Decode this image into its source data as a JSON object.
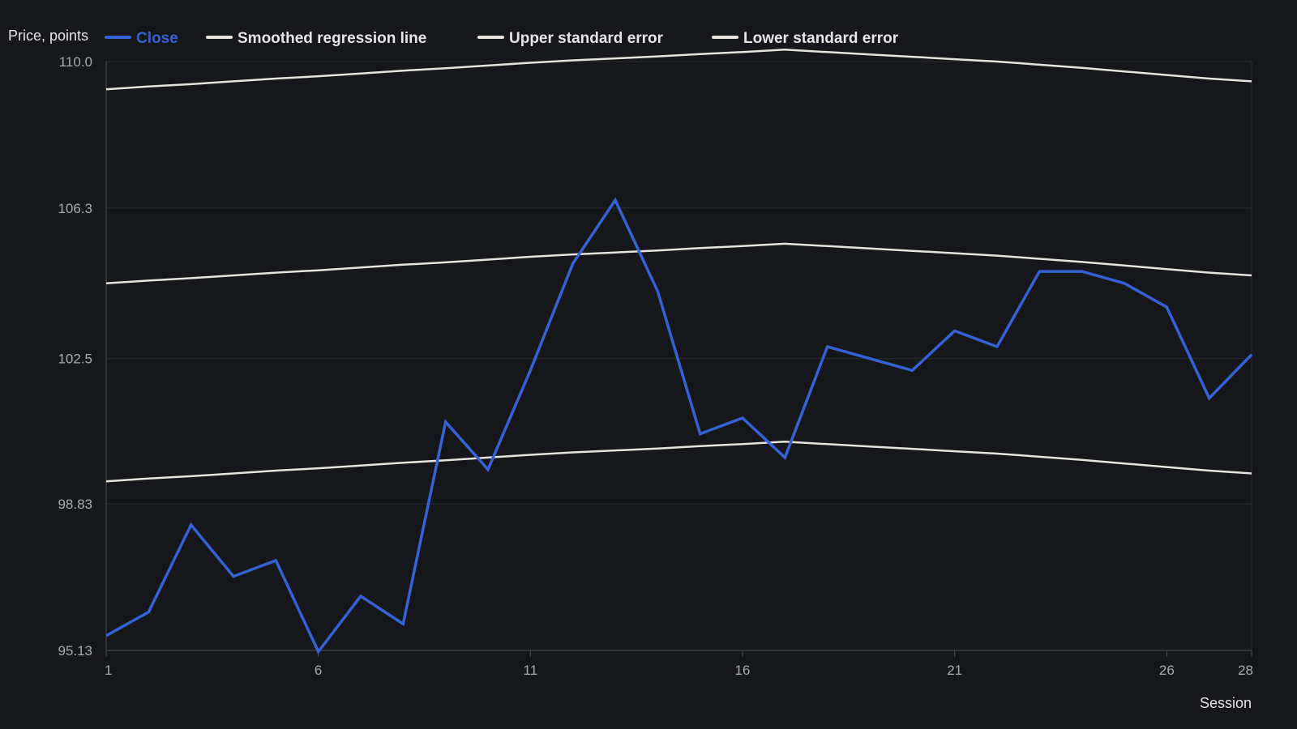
{
  "chart_data": {
    "type": "line",
    "title": "",
    "xlabel": "Session",
    "ylabel": "Price, points",
    "x": [
      1,
      2,
      3,
      4,
      5,
      6,
      7,
      8,
      9,
      10,
      11,
      12,
      13,
      14,
      15,
      16,
      17,
      18,
      19,
      20,
      21,
      22,
      23,
      24,
      25,
      26,
      27,
      28
    ],
    "x_ticks": [
      1,
      6,
      11,
      16,
      21,
      26,
      28
    ],
    "y_ticks": [
      "95.13",
      "98.83",
      "102.5",
      "106.3",
      "110.0"
    ],
    "xlim": [
      1,
      28
    ],
    "ylim": [
      95.13,
      110.0
    ],
    "grid": true,
    "legend_position": "top-left",
    "series": [
      {
        "name": "Close",
        "color": "#3563d6",
        "values": [
          95.5,
          96.1,
          98.3,
          97.0,
          97.4,
          95.1,
          96.5,
          95.8,
          100.9,
          99.7,
          102.2,
          104.9,
          106.5,
          104.2,
          100.6,
          101.0,
          100.0,
          102.8,
          102.5,
          102.2,
          103.2,
          102.8,
          104.7,
          104.7,
          104.4,
          103.8,
          101.5,
          102.6
        ]
      },
      {
        "name": "Smoothed regression line",
        "color": "#e6e4dc",
        "values": [
          104.4,
          104.47,
          104.53,
          104.6,
          104.67,
          104.73,
          104.8,
          104.87,
          104.93,
          105.0,
          105.07,
          105.13,
          105.18,
          105.23,
          105.29,
          105.34,
          105.4,
          105.34,
          105.28,
          105.22,
          105.16,
          105.1,
          105.02,
          104.94,
          104.85,
          104.76,
          104.67,
          104.6
        ]
      },
      {
        "name": "Upper standard error",
        "color": "#e6e4dc",
        "values": [
          109.3,
          109.37,
          109.43,
          109.5,
          109.57,
          109.63,
          109.7,
          109.77,
          109.83,
          109.9,
          109.97,
          110.03,
          110.08,
          110.13,
          110.19,
          110.24,
          110.3,
          110.24,
          110.18,
          110.12,
          110.06,
          110.0,
          109.92,
          109.84,
          109.75,
          109.66,
          109.57,
          109.5
        ]
      },
      {
        "name": "Lower standard error",
        "color": "#e6e4dc",
        "values": [
          99.4,
          99.47,
          99.53,
          99.6,
          99.67,
          99.73,
          99.8,
          99.87,
          99.93,
          100.0,
          100.07,
          100.13,
          100.18,
          100.23,
          100.29,
          100.34,
          100.4,
          100.34,
          100.28,
          100.22,
          100.16,
          100.1,
          100.02,
          99.94,
          99.85,
          99.76,
          99.67,
          99.6
        ]
      }
    ]
  },
  "colors": {
    "background": "#16171b",
    "gridline": "#2a2c32",
    "axis": "#4a4c52",
    "tick_text": "#a9abb2",
    "label_text": "#e6e6e6"
  }
}
